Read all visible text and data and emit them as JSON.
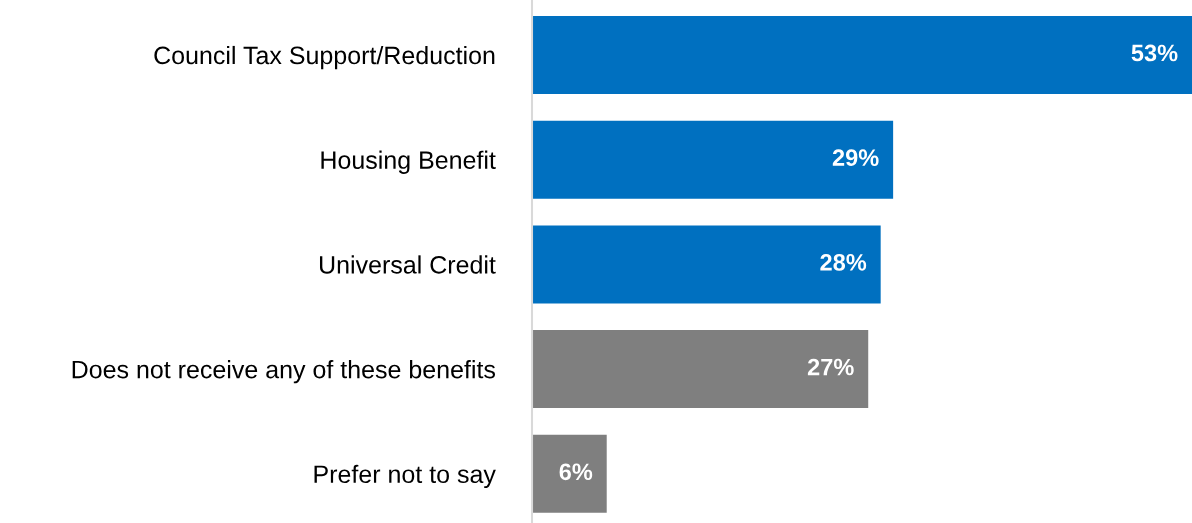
{
  "chart_data": {
    "type": "bar",
    "orientation": "horizontal",
    "categories": [
      "Council Tax Support/Reduction",
      "Housing Benefit",
      "Universal Credit",
      "Does not receive any of these benefits",
      "Prefer not to say"
    ],
    "values": [
      53,
      29,
      28,
      27,
      6
    ],
    "colors": [
      "#0070c0",
      "#0070c0",
      "#0070c0",
      "#7f7f7f",
      "#7f7f7f"
    ],
    "value_labels": [
      "53%",
      "29%",
      "28%",
      "27%",
      "6%"
    ],
    "xlim": [
      0,
      53
    ],
    "tick_labels": "y",
    "grid": false,
    "legend": false
  }
}
